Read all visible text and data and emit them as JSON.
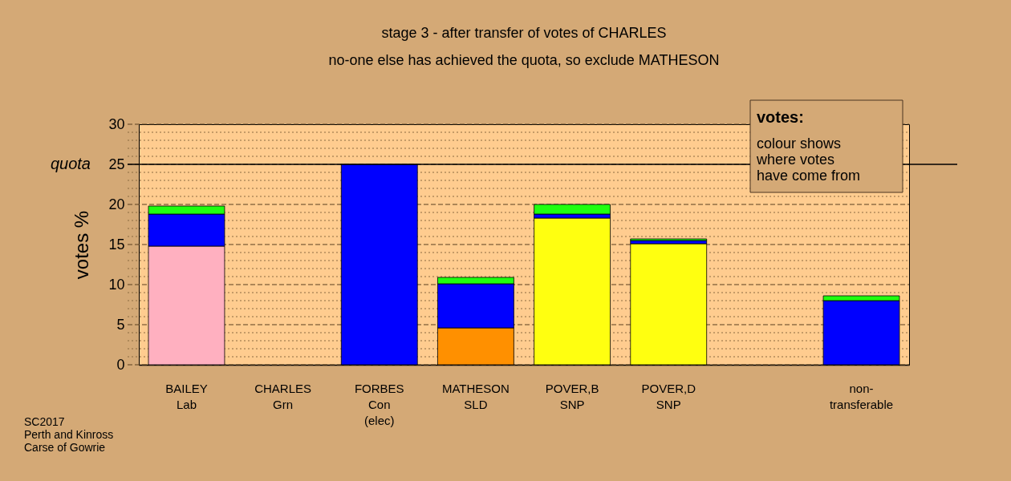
{
  "chart_data": {
    "type": "bar",
    "stacked": true,
    "title": "stage 3 - after transfer of votes of CHARLES",
    "subtitle": "no-one else has achieved the quota, so exclude MATHESON",
    "ylabel": "votes %",
    "categories": [
      "BAILEY\nLab",
      "CHARLES\nGrn",
      "FORBES\nCon\n(elec)",
      "MATHESON\nSLD",
      "POVER,B\nSNP",
      "POVER,D\nSNP",
      null,
      "non-\ntransferable"
    ],
    "series": [
      {
        "color": "#ffb0c0",
        "values": [
          14.8,
          0,
          0,
          0,
          0,
          0,
          null,
          0
        ]
      },
      {
        "color": "#ff9000",
        "values": [
          0,
          0,
          0,
          4.6,
          0,
          0,
          null,
          0
        ]
      },
      {
        "color": "#ffff10",
        "values": [
          0,
          0,
          0,
          0,
          18.3,
          15.1,
          null,
          0
        ]
      },
      {
        "color": "#0000ff",
        "values": [
          4.0,
          0,
          25,
          5.5,
          0.5,
          0.4,
          null,
          8.0
        ]
      },
      {
        "color": "#20ff10",
        "values": [
          1.0,
          0,
          0,
          0.8,
          1.2,
          0.2,
          null,
          0.6
        ]
      }
    ],
    "ylim": [
      0,
      30
    ],
    "yticks": [
      0,
      {
        "value": 1,
        "label": null
      },
      {
        "value": 2,
        "label": null
      },
      {
        "value": 3,
        "label": null
      },
      {
        "value": 4,
        "label": null
      },
      5,
      {
        "value": 6,
        "label": null
      },
      {
        "value": 7,
        "label": null
      },
      {
        "value": 8,
        "label": null
      },
      {
        "value": 9,
        "label": null
      },
      10,
      {
        "value": 11,
        "label": null
      },
      {
        "value": 12,
        "label": null
      },
      {
        "value": 13,
        "label": null
      },
      {
        "value": 14,
        "label": null
      },
      15,
      {
        "value": 16,
        "label": null
      },
      {
        "value": 17,
        "label": null
      },
      {
        "value": 18,
        "label": null
      },
      {
        "value": 19,
        "label": null
      },
      20,
      {
        "value": 21,
        "label": null
      },
      {
        "value": 22,
        "label": null
      },
      {
        "value": 23,
        "label": null
      },
      {
        "value": 24,
        "label": null
      },
      25,
      {
        "value": 26,
        "label": null
      },
      {
        "value": 27,
        "label": null
      },
      {
        "value": 28,
        "label": null
      },
      {
        "value": 29,
        "label": null
      },
      30
    ],
    "ref_lines": [
      {
        "axis": "y",
        "value": 25,
        "label": "quota",
        "color": "#000000",
        "line_style": "solid"
      }
    ],
    "grid": "y",
    "legend": false,
    "annotations": [
      "votes:",
      "colour shows\nwhere votes\nhave come from",
      "SC2017\nPerth and Kinross\nCarse of Gowrie"
    ]
  }
}
